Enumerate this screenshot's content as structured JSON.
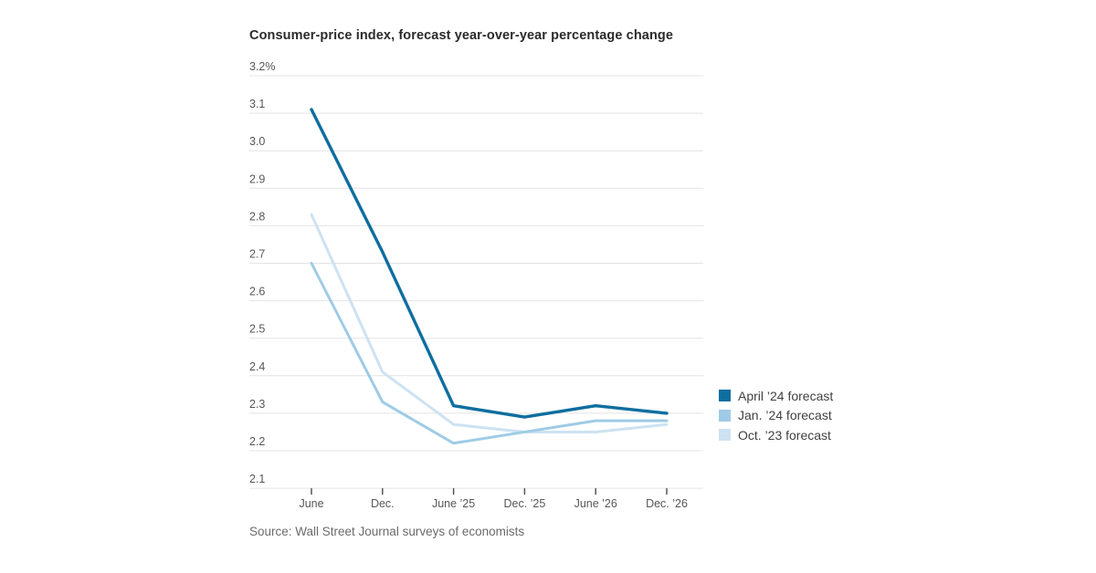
{
  "header": {
    "title": "Consumer-price index, forecast year-over-year percentage change"
  },
  "chart_data": {
    "type": "line",
    "categories": [
      "June",
      "Dec.",
      "June ’25",
      "Dec. ’25",
      "June ’26",
      "Dec. ’26"
    ],
    "series": [
      {
        "name": "April ’24 forecast",
        "color": "#0e6ea0",
        "values": [
          3.11,
          2.73,
          2.32,
          2.29,
          2.32,
          2.3
        ]
      },
      {
        "name": "Jan. ’24 forecast",
        "color": "#9fcbe6",
        "values": [
          2.7,
          2.33,
          2.22,
          2.25,
          2.28,
          2.28
        ]
      },
      {
        "name": "Oct. ’23 forecast",
        "color": "#cde2f2",
        "values": [
          2.83,
          2.41,
          2.27,
          2.25,
          2.25,
          2.27
        ]
      }
    ],
    "ylim": [
      2.1,
      3.2
    ],
    "ytick_step": 0.1,
    "ytick_top_label": "3.2%",
    "grid": true,
    "legend_position": "right",
    "title": "Consumer-price index, forecast year-over-year percentage change",
    "xlabel": "",
    "ylabel": ""
  },
  "footer": {
    "source": "Source: Wall Street Journal surveys of economists"
  },
  "colors": {
    "gridline": "#e4e4e4",
    "axis_text": "#575757",
    "tick_mark": "#555555"
  }
}
